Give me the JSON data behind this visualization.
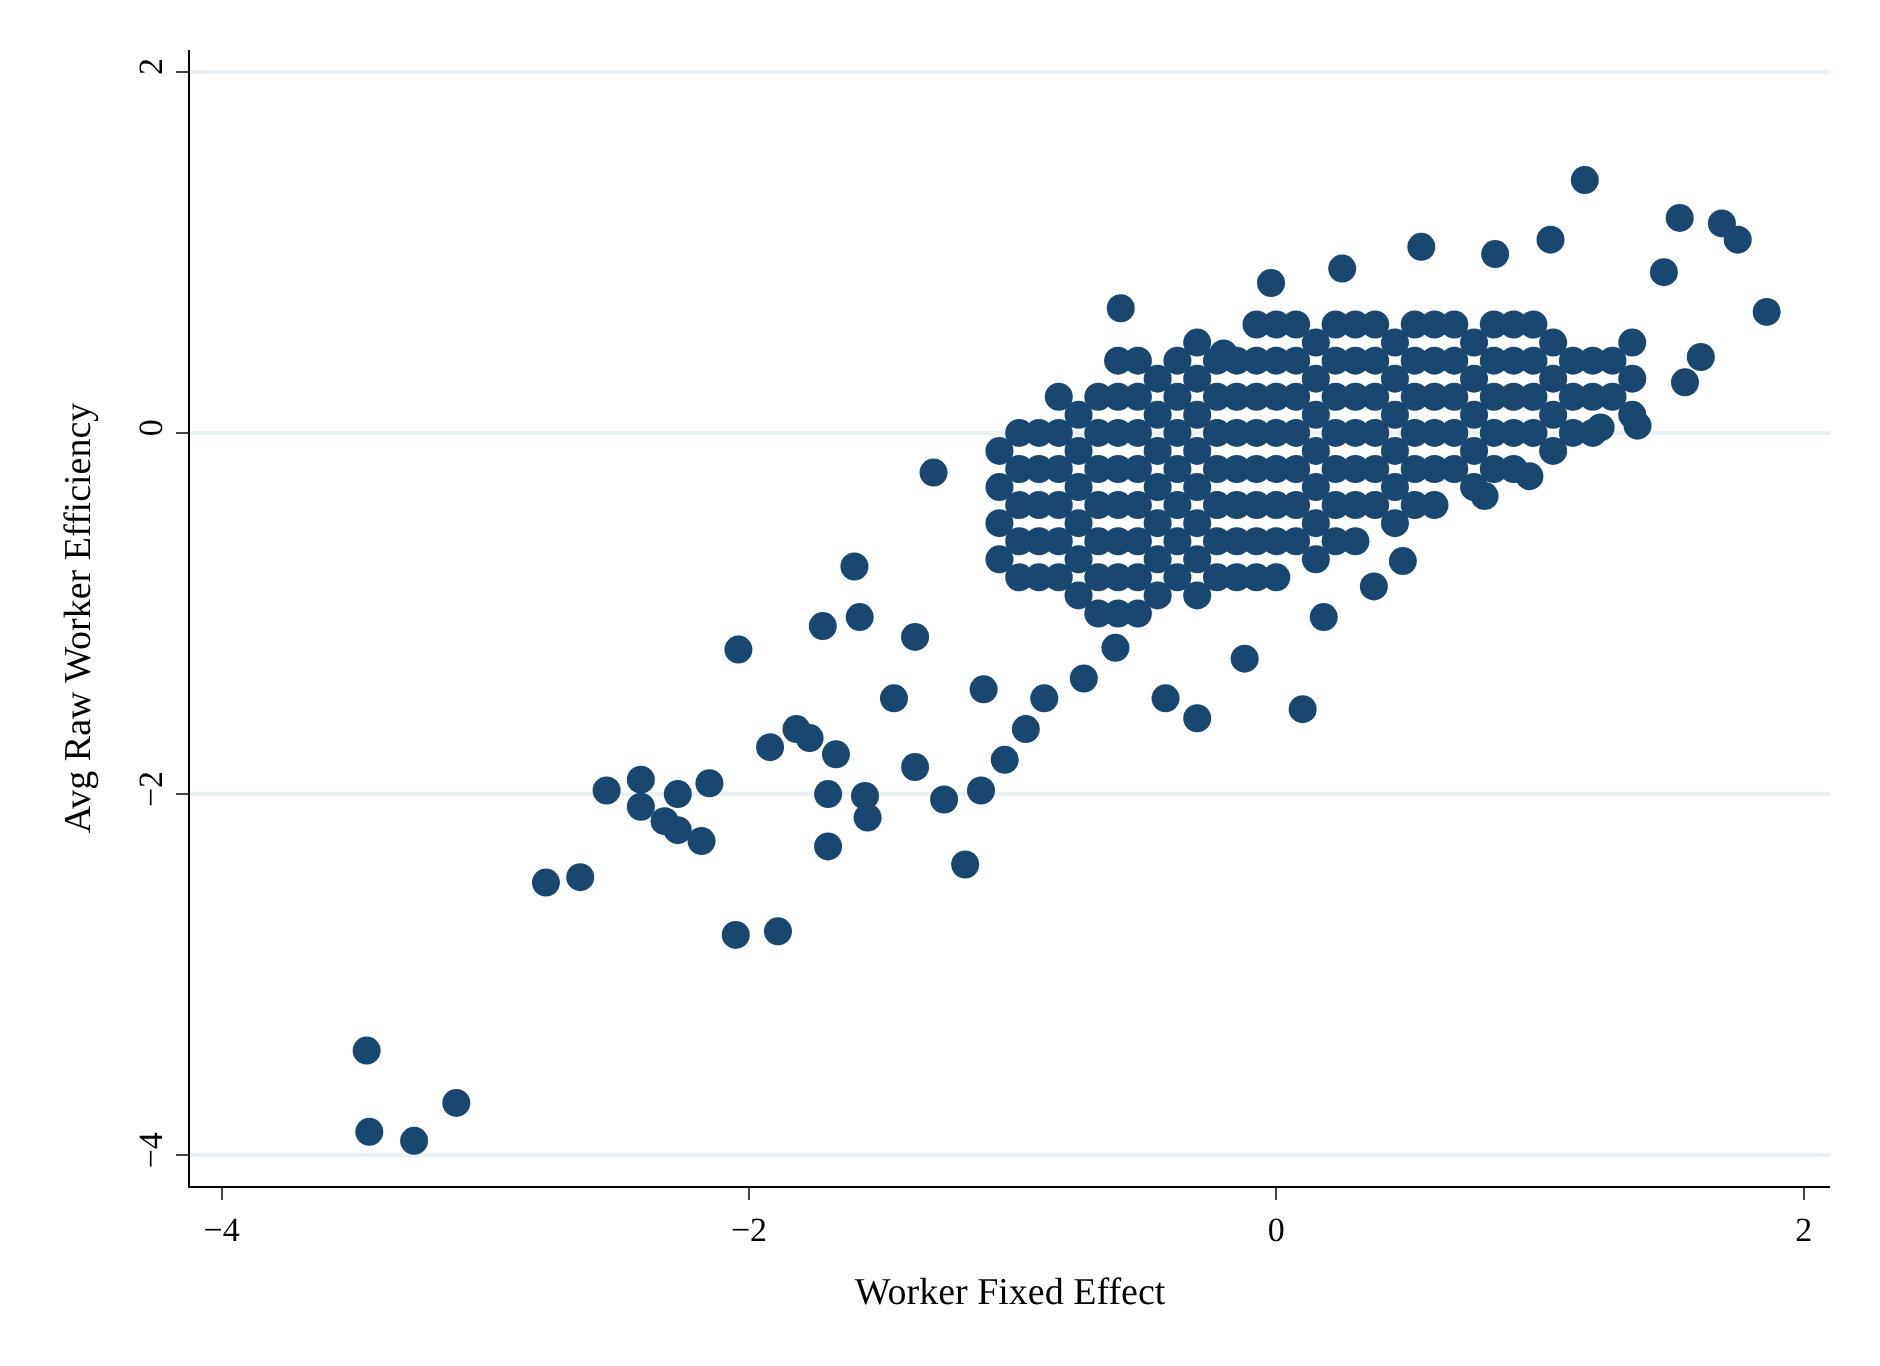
{
  "chart_data": {
    "type": "scatter",
    "xlabel": "Worker Fixed Effect",
    "ylabel": "Avg Raw Worker Efficiency",
    "xlim": [
      -4.12,
      2.1
    ],
    "ylim": [
      -4.17,
      2.12
    ],
    "xticks": [
      -4,
      -2,
      0,
      2
    ],
    "yticks": [
      -4,
      -2,
      0,
      2
    ],
    "grid": "y",
    "marker": "circle",
    "series": [
      {
        "color": "#1a476f",
        "x": [
          -3.45,
          -3.44,
          -3.27,
          -3.11,
          -2.77,
          -2.64,
          -2.54,
          -2.41,
          -2.41,
          -2.32,
          -2.27,
          -2.27,
          -2.18,
          -2.15,
          -2.05,
          -1.89,
          -2.04,
          -1.92,
          -1.82,
          -1.77,
          -1.7,
          -1.7,
          -1.67,
          -1.72,
          -1.56,
          -1.55,
          -1.58,
          -1.6,
          -1.45,
          -1.37,
          -1.26,
          -1.18,
          -1.3,
          -1.12,
          -1.03,
          -1.37,
          -1.11,
          -0.95,
          -0.88,
          -0.73,
          -0.61,
          -0.42,
          -0.3,
          -0.12,
          0.1,
          0.18,
          0.37,
          0.48,
          -0.59,
          -0.2,
          -0.02,
          0.25,
          0.55,
          0.83,
          1.04,
          1.17,
          1.53,
          1.69,
          1.75,
          1.86,
          1.61,
          1.55,
          1.47,
          1.37,
          1.23,
          0.96,
          0.79,
          -1.05,
          -1.05,
          -1.05,
          -1.05,
          -0.9,
          -0.9,
          -0.9,
          -0.9,
          -0.9,
          -0.75,
          -0.75,
          -0.75,
          -0.75,
          -0.75,
          -0.75,
          -0.6,
          -0.6,
          -0.6,
          -0.6,
          -0.6,
          -0.6,
          -0.6,
          -0.6,
          -0.45,
          -0.45,
          -0.45,
          -0.45,
          -0.45,
          -0.45,
          -0.45,
          -0.3,
          -0.3,
          -0.3,
          -0.3,
          -0.3,
          -0.3,
          -0.3,
          -0.3,
          -0.15,
          -0.15,
          -0.15,
          -0.15,
          -0.15,
          -0.15,
          -0.15,
          0.0,
          0.0,
          0.0,
          0.0,
          0.0,
          0.0,
          0.0,
          0.0,
          0.15,
          0.15,
          0.15,
          0.15,
          0.15,
          0.15,
          0.15,
          0.3,
          0.3,
          0.3,
          0.3,
          0.3,
          0.3,
          0.3,
          0.45,
          0.45,
          0.45,
          0.45,
          0.45,
          0.45,
          0.6,
          0.6,
          0.6,
          0.6,
          0.6,
          0.6,
          0.75,
          0.75,
          0.75,
          0.75,
          0.75,
          0.9,
          0.9,
          0.9,
          0.9,
          0.9,
          1.05,
          1.05,
          1.05,
          1.05,
          1.2,
          1.2,
          1.2,
          1.35,
          1.35,
          1.35
        ],
        "values": [
          -3.42,
          -3.87,
          -3.92,
          -3.71,
          -2.49,
          -2.46,
          -1.98,
          -1.92,
          -2.07,
          -2.15,
          -2.2,
          -2.0,
          -2.26,
          -1.94,
          -2.78,
          -2.76,
          -1.2,
          -1.74,
          -1.64,
          -1.69,
          -2.0,
          -2.29,
          -1.78,
          -1.07,
          -2.01,
          -2.13,
          -1.02,
          -0.74,
          -1.47,
          -1.85,
          -2.03,
          -2.39,
          -0.22,
          -1.98,
          -1.81,
          -1.13,
          -1.42,
          -1.64,
          -1.47,
          -1.36,
          -1.19,
          -1.47,
          -1.58,
          -1.25,
          -1.53,
          -1.02,
          -0.85,
          -0.71,
          0.69,
          0.44,
          0.83,
          0.91,
          1.03,
          0.99,
          1.07,
          1.4,
          1.19,
          1.16,
          1.07,
          0.67,
          0.42,
          0.28,
          0.89,
          0.04,
          0.03,
          -0.24,
          -0.35,
          -0.7,
          -0.5,
          -0.3,
          -0.1,
          -0.8,
          -0.6,
          -0.4,
          -0.2,
          0.0,
          -0.9,
          -0.7,
          -0.5,
          -0.3,
          -0.1,
          0.1,
          -1.0,
          -0.8,
          -0.6,
          -0.4,
          -0.2,
          0.0,
          0.2,
          0.4,
          -0.9,
          -0.7,
          -0.5,
          -0.3,
          -0.1,
          0.1,
          0.3,
          -0.9,
          -0.7,
          -0.5,
          -0.3,
          -0.1,
          0.1,
          0.3,
          0.5,
          -0.8,
          -0.6,
          -0.4,
          -0.2,
          0.0,
          0.2,
          0.4,
          -0.8,
          -0.6,
          -0.4,
          -0.2,
          0.0,
          0.2,
          0.4,
          0.6,
          -0.7,
          -0.5,
          -0.3,
          -0.1,
          0.1,
          0.3,
          0.5,
          -0.6,
          -0.4,
          -0.2,
          0.0,
          0.2,
          0.4,
          0.6,
          -0.5,
          -0.3,
          -0.1,
          0.1,
          0.3,
          0.5,
          -0.4,
          -0.2,
          0.0,
          0.2,
          0.4,
          0.6,
          -0.3,
          -0.1,
          0.1,
          0.3,
          0.5,
          -0.2,
          0.0,
          0.2,
          0.4,
          0.6,
          -0.1,
          0.1,
          0.3,
          0.5,
          0.0,
          0.2,
          0.4,
          0.1,
          0.3,
          0.5
        ]
      },
      {
        "color": "#1a476f",
        "x": [
          -0.975,
          -0.975,
          -0.975,
          -0.975,
          -0.975,
          -0.825,
          -0.825,
          -0.825,
          -0.825,
          -0.825,
          -0.825,
          -0.675,
          -0.675,
          -0.675,
          -0.675,
          -0.675,
          -0.675,
          -0.675,
          -0.525,
          -0.525,
          -0.525,
          -0.525,
          -0.525,
          -0.525,
          -0.525,
          -0.525,
          -0.375,
          -0.375,
          -0.375,
          -0.375,
          -0.375,
          -0.375,
          -0.375,
          -0.225,
          -0.225,
          -0.225,
          -0.225,
          -0.225,
          -0.225,
          -0.225,
          -0.075,
          -0.075,
          -0.075,
          -0.075,
          -0.075,
          -0.075,
          -0.075,
          -0.075,
          0.075,
          0.075,
          0.075,
          0.075,
          0.075,
          0.075,
          0.075,
          0.225,
          0.225,
          0.225,
          0.225,
          0.225,
          0.225,
          0.225,
          0.375,
          0.375,
          0.375,
          0.375,
          0.375,
          0.375,
          0.525,
          0.525,
          0.525,
          0.525,
          0.525,
          0.525,
          0.675,
          0.675,
          0.675,
          0.675,
          0.675,
          0.825,
          0.825,
          0.825,
          0.825,
          0.825,
          0.975,
          0.975,
          0.975,
          0.975,
          1.125,
          1.125,
          1.125,
          1.275,
          1.275
        ],
        "values": [
          -0.8,
          -0.6,
          -0.4,
          -0.2,
          0.0,
          -0.8,
          -0.6,
          -0.4,
          -0.2,
          0.0,
          0.2,
          -1.0,
          -0.8,
          -0.6,
          -0.4,
          -0.2,
          0.0,
          0.2,
          -1.0,
          -0.8,
          -0.6,
          -0.4,
          -0.2,
          0.0,
          0.2,
          0.4,
          -0.8,
          -0.6,
          -0.4,
          -0.2,
          0.0,
          0.2,
          0.4,
          -0.8,
          -0.6,
          -0.4,
          -0.2,
          0.0,
          0.2,
          0.4,
          -0.8,
          -0.6,
          -0.4,
          -0.2,
          0.0,
          0.2,
          0.4,
          0.6,
          -0.6,
          -0.4,
          -0.2,
          0.0,
          0.2,
          0.4,
          0.6,
          -0.6,
          -0.4,
          -0.2,
          0.0,
          0.2,
          0.4,
          0.6,
          -0.4,
          -0.2,
          0.0,
          0.2,
          0.4,
          0.6,
          -0.4,
          -0.2,
          0.0,
          0.2,
          0.4,
          0.6,
          -0.2,
          0.0,
          0.2,
          0.4,
          0.6,
          -0.2,
          0.0,
          0.2,
          0.4,
          0.6,
          0.0,
          0.2,
          0.4,
          0.6,
          0.0,
          0.2,
          0.4,
          0.2,
          0.4
        ]
      }
    ]
  }
}
